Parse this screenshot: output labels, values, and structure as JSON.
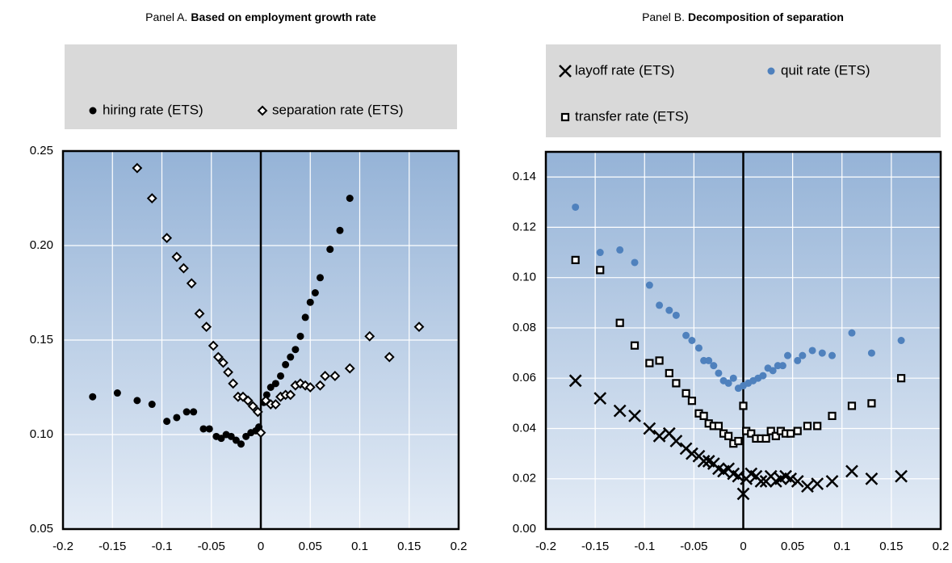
{
  "chart_data": [
    {
      "type": "scatter",
      "panel_label": "Panel A.",
      "title": "Based on employment growth rate",
      "xlim": [
        -0.2,
        0.2
      ],
      "xticks": [
        -0.2,
        -0.15,
        -0.1,
        -0.05,
        0,
        0.05,
        0.1,
        0.15,
        0.2
      ],
      "ylim": [
        0.05,
        0.25
      ],
      "yticks": [
        0.05,
        {
          "value": 0.1,
          "label": "0.10"
        },
        0.15,
        {
          "value": 0.2,
          "label": "0.20"
        },
        0.25
      ],
      "grid": true,
      "series": [
        {
          "name": "hiring rate (ETS)",
          "color": "#000000",
          "marker": "circle",
          "x": [
            -0.17,
            -0.145,
            -0.125,
            -0.11,
            -0.095,
            -0.085,
            -0.075,
            -0.068,
            -0.058,
            -0.052,
            -0.045,
            -0.04,
            -0.035,
            -0.03,
            -0.025,
            -0.02,
            -0.015,
            -0.01,
            -0.005,
            -0.002,
            0.003,
            0.006,
            0.01,
            0.015,
            0.02,
            0.025,
            0.03,
            0.035,
            0.04,
            0.045,
            0.05,
            0.055,
            0.06,
            0.07,
            0.08,
            0.09
          ],
          "values": [
            0.12,
            0.122,
            0.118,
            0.116,
            0.107,
            0.109,
            0.112,
            0.112,
            0.103,
            0.103,
            0.099,
            0.098,
            0.1,
            0.099,
            0.097,
            0.095,
            0.099,
            0.101,
            0.102,
            0.104,
            0.117,
            0.121,
            0.125,
            0.127,
            0.131,
            0.137,
            0.141,
            0.145,
            0.152,
            0.162,
            0.17,
            0.175,
            0.183,
            0.198,
            0.208,
            0.225
          ]
        },
        {
          "name": "separation rate (ETS)",
          "color": "#000000",
          "marker": "diamond",
          "x": [
            -0.125,
            -0.11,
            -0.095,
            -0.085,
            -0.078,
            -0.07,
            -0.062,
            -0.055,
            -0.048,
            -0.043,
            -0.038,
            -0.033,
            -0.028,
            -0.023,
            -0.018,
            -0.013,
            -0.008,
            -0.003,
            0,
            0.005,
            0.01,
            0.015,
            0.02,
            0.025,
            0.03,
            0.035,
            0.04,
            0.045,
            0.05,
            0.06,
            0.065,
            0.075,
            0.09,
            0.11,
            0.13,
            0.16
          ],
          "values": [
            0.241,
            0.225,
            0.204,
            0.194,
            0.188,
            0.18,
            0.164,
            0.157,
            0.147,
            0.141,
            0.138,
            0.133,
            0.127,
            0.12,
            0.12,
            0.118,
            0.115,
            0.112,
            0.101,
            0.118,
            0.116,
            0.116,
            0.12,
            0.121,
            0.121,
            0.126,
            0.127,
            0.126,
            0.125,
            0.126,
            0.131,
            0.131,
            0.135,
            0.152,
            0.141,
            0.157
          ]
        }
      ]
    },
    {
      "type": "scatter",
      "panel_label": "Panel B.",
      "title": "Decomposition of separation",
      "xlim": [
        -0.2,
        0.2
      ],
      "xticks": [
        -0.2,
        -0.15,
        -0.1,
        -0.05,
        0,
        0.05,
        0.1,
        0.15,
        0.2
      ],
      "ylim": [
        0,
        0.15
      ],
      "yticks": [
        {
          "value": 0,
          "label": "0.00"
        },
        0.02,
        0.04,
        0.06,
        0.08,
        {
          "value": 0.1,
          "label": "0.10"
        },
        0.12,
        0.14
      ],
      "grid": true,
      "series": [
        {
          "name": "layoff rate (ETS)",
          "color": "#000000",
          "marker": "cross",
          "x": [
            -0.17,
            -0.145,
            -0.125,
            -0.11,
            -0.095,
            -0.085,
            -0.075,
            -0.068,
            -0.058,
            -0.052,
            -0.045,
            -0.04,
            -0.035,
            -0.03,
            -0.025,
            -0.02,
            -0.015,
            -0.01,
            -0.005,
            0,
            0.003,
            0.008,
            0.013,
            0.018,
            0.023,
            0.028,
            0.033,
            0.038,
            0.043,
            0.048,
            0.055,
            0.065,
            0.075,
            0.09,
            0.11,
            0.13,
            0.16
          ],
          "values": [
            0.059,
            0.052,
            0.047,
            0.045,
            0.04,
            0.037,
            0.038,
            0.035,
            0.032,
            0.03,
            0.029,
            0.027,
            0.027,
            0.026,
            0.024,
            0.023,
            0.024,
            0.022,
            0.021,
            0.014,
            0.02,
            0.022,
            0.021,
            0.019,
            0.019,
            0.021,
            0.019,
            0.02,
            0.021,
            0.02,
            0.019,
            0.017,
            0.018,
            0.019,
            0.023,
            0.02,
            0.021
          ]
        },
        {
          "name": "quit rate (ETS)",
          "color": "#4f81bd",
          "marker": "circle",
          "x": [
            -0.17,
            -0.145,
            -0.125,
            -0.11,
            -0.095,
            -0.085,
            -0.075,
            -0.068,
            -0.058,
            -0.052,
            -0.045,
            -0.04,
            -0.035,
            -0.03,
            -0.025,
            -0.02,
            -0.015,
            -0.01,
            -0.005,
            0,
            0.005,
            0.01,
            0.015,
            0.02,
            0.025,
            0.03,
            0.035,
            0.04,
            0.045,
            0.055,
            0.06,
            0.07,
            0.08,
            0.09,
            0.11,
            0.13,
            0.16
          ],
          "values": [
            0.128,
            0.11,
            0.111,
            0.106,
            0.097,
            0.089,
            0.087,
            0.085,
            0.077,
            0.075,
            0.072,
            0.067,
            0.067,
            0.065,
            0.062,
            0.059,
            0.058,
            0.06,
            0.056,
            0.057,
            0.058,
            0.059,
            0.06,
            0.061,
            0.064,
            0.063,
            0.065,
            0.065,
            0.069,
            0.067,
            0.069,
            0.071,
            0.07,
            0.069,
            0.078,
            0.07,
            0.075
          ]
        },
        {
          "name": "transfer rate (ETS)",
          "color": "#000000",
          "marker": "square",
          "x": [
            -0.17,
            -0.145,
            -0.125,
            -0.11,
            -0.095,
            -0.085,
            -0.075,
            -0.068,
            -0.058,
            -0.052,
            -0.045,
            -0.04,
            -0.035,
            -0.03,
            -0.025,
            -0.02,
            -0.015,
            -0.01,
            -0.005,
            0,
            0.003,
            0.008,
            0.013,
            0.018,
            0.023,
            0.028,
            0.033,
            0.038,
            0.043,
            0.048,
            0.055,
            0.065,
            0.075,
            0.09,
            0.11,
            0.13,
            0.16
          ],
          "values": [
            0.107,
            0.103,
            0.082,
            0.073,
            0.066,
            0.067,
            0.062,
            0.058,
            0.054,
            0.051,
            0.046,
            0.045,
            0.042,
            0.041,
            0.041,
            0.038,
            0.037,
            0.034,
            0.035,
            0.049,
            0.039,
            0.038,
            0.036,
            0.036,
            0.036,
            0.039,
            0.037,
            0.039,
            0.038,
            0.038,
            0.039,
            0.041,
            0.041,
            0.045,
            0.049,
            0.05,
            0.06
          ]
        }
      ]
    }
  ]
}
